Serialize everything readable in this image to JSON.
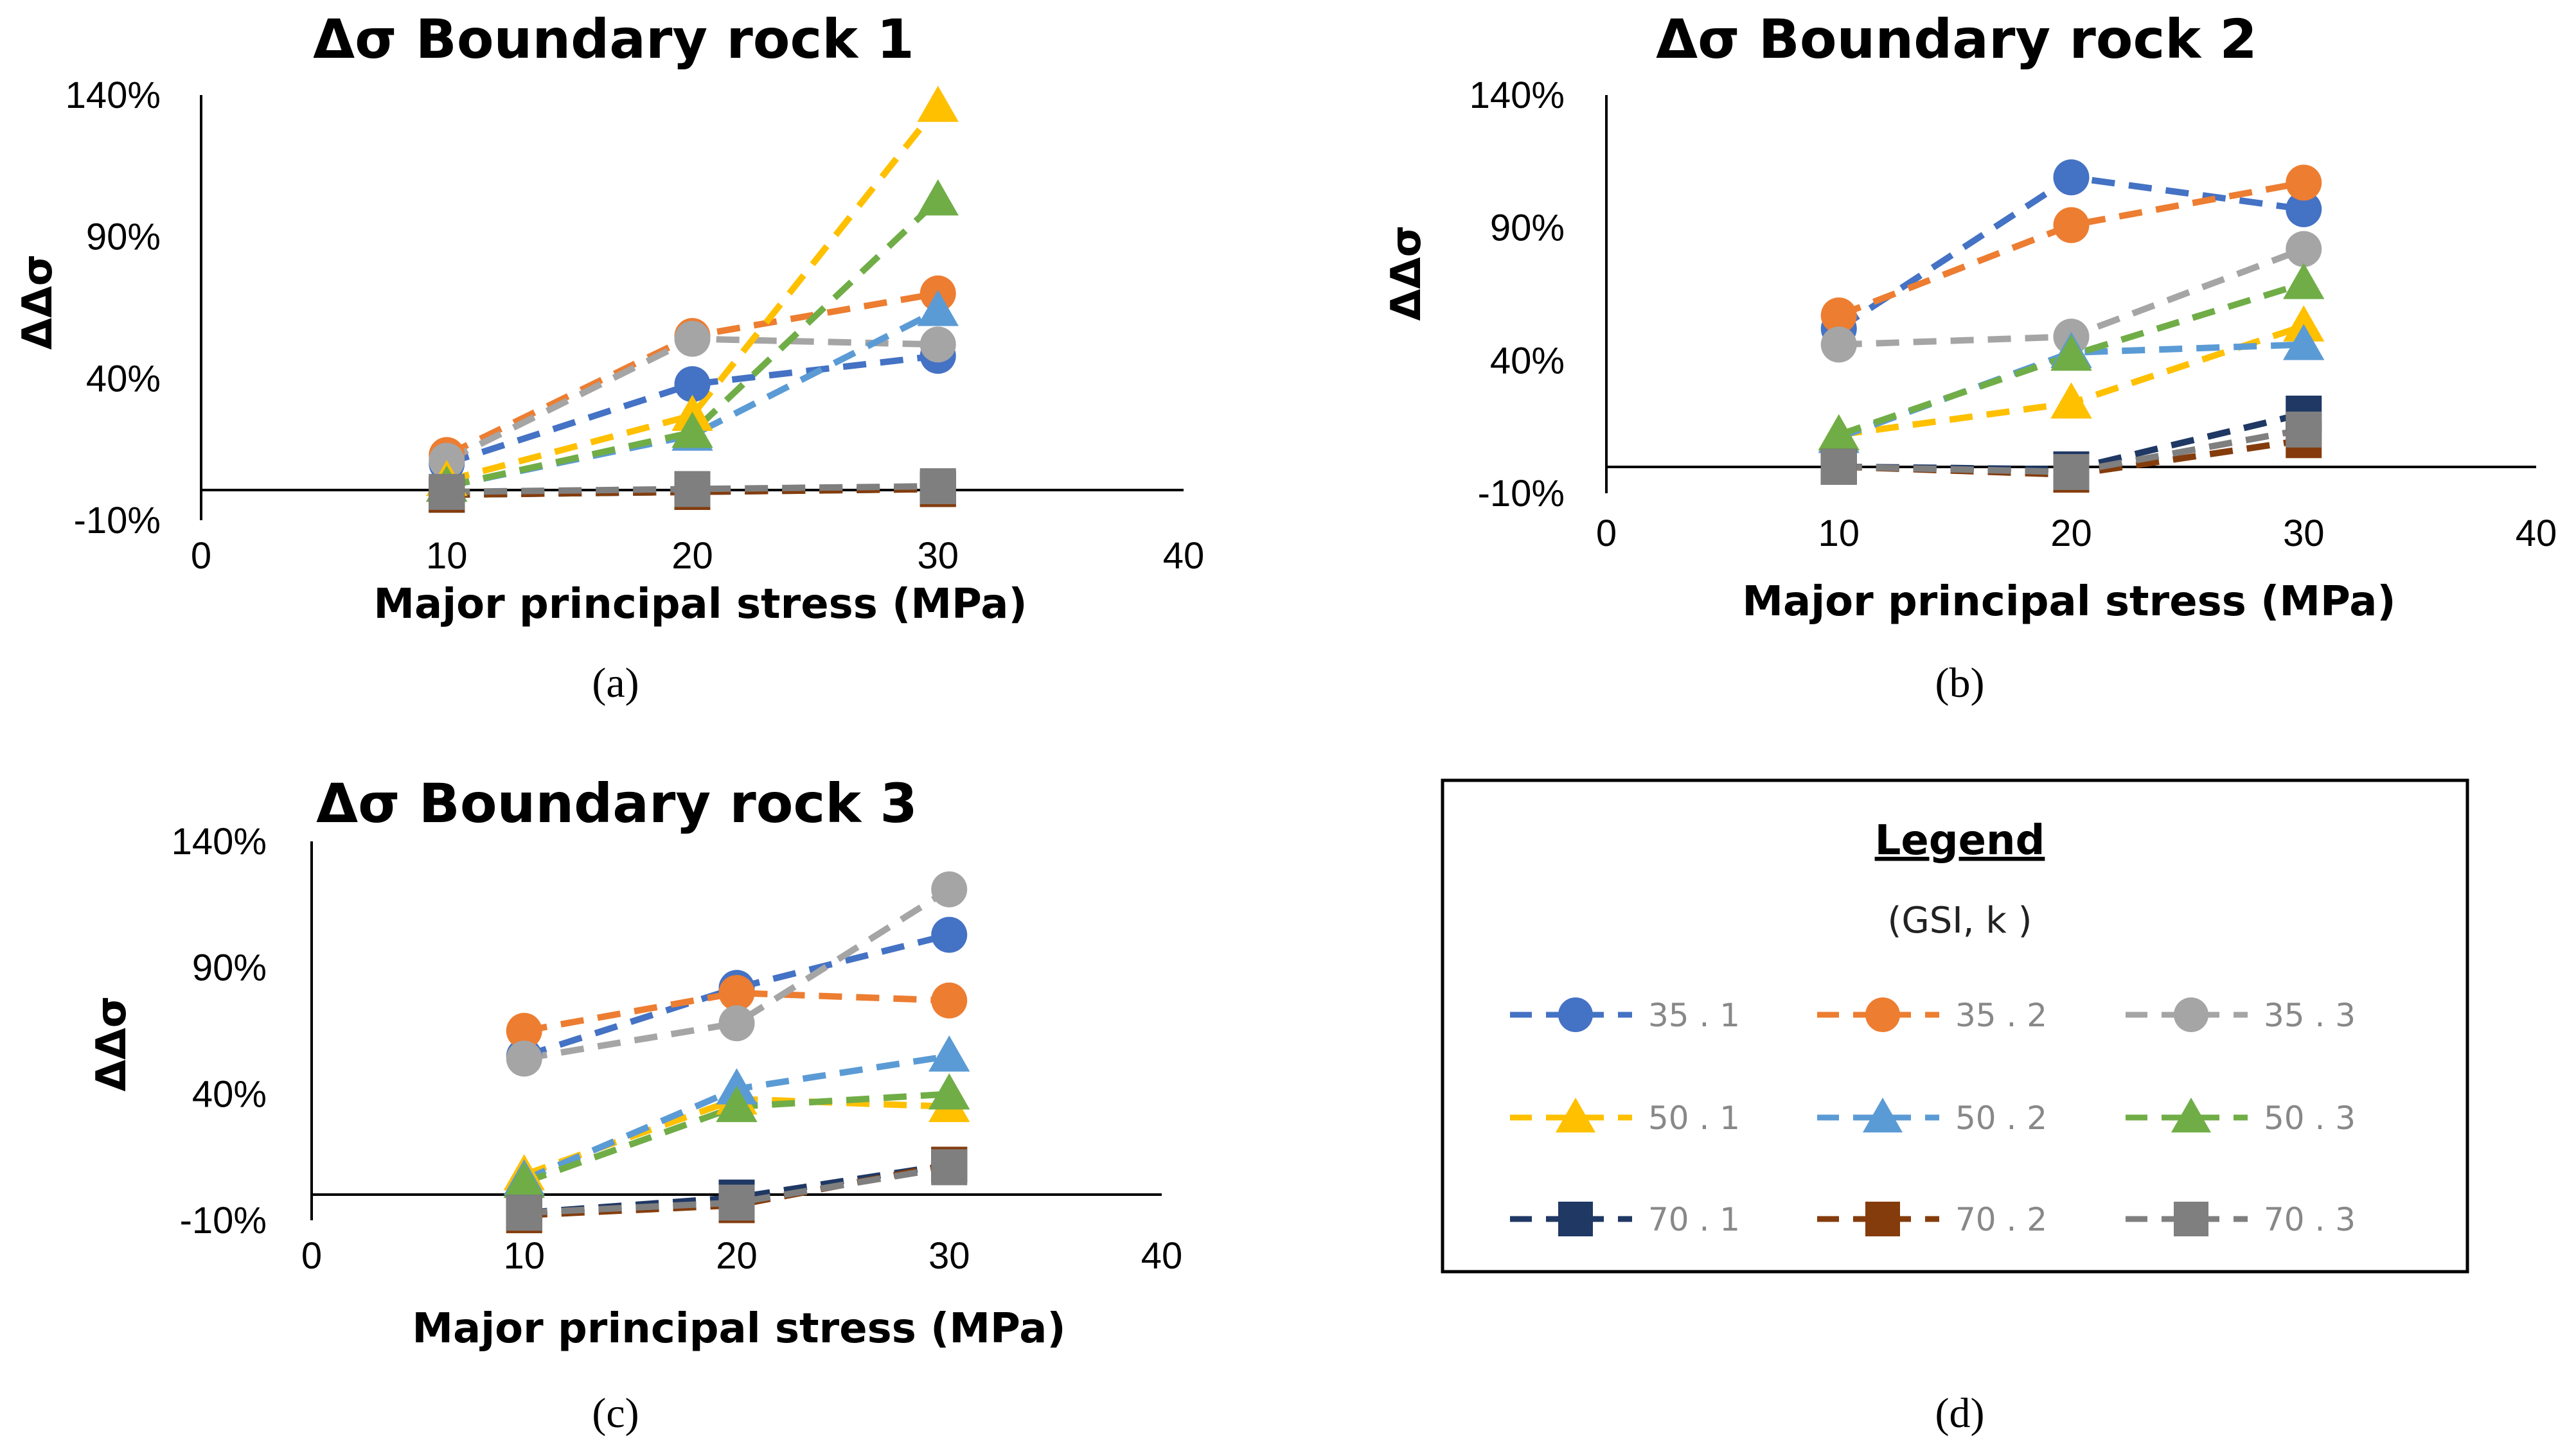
{
  "colors": {
    "35.1": "#4472C4",
    "35.2": "#ED7D31",
    "35.3": "#A5A5A5",
    "50.1": "#FFC000",
    "50.2": "#5B9BD5",
    "50.3": "#70AD47",
    "70.1": "#1F3864",
    "70.2": "#843C0C",
    "70.3": "#7F7F7F"
  },
  "markers": {
    "35.1": "circle",
    "35.2": "circle",
    "35.3": "circle",
    "50.1": "triangle",
    "50.2": "triangle",
    "50.3": "triangle",
    "70.1": "square",
    "70.2": "square",
    "70.3": "square"
  },
  "chart_data": [
    {
      "type": "line",
      "panel_label": "(a)",
      "title": "Δσ Boundary rock 1",
      "xlabel": "Major principal stress (MPa)",
      "ylabel": "ΔΔσ",
      "xlim": [
        0,
        40
      ],
      "ylim": [
        -10,
        140
      ],
      "xticks": [
        0,
        10,
        20,
        30,
        40
      ],
      "xtick_labels": [
        "0",
        "10",
        "20",
        "30",
        "40"
      ],
      "yticks": [
        -10,
        40,
        90,
        140
      ],
      "ytick_labels": [
        "-10%",
        "40%",
        "90%",
        "140%"
      ],
      "x": [
        10,
        20,
        30
      ],
      "series": [
        {
          "name": "35.1",
          "values": [
            10,
            38,
            48
          ]
        },
        {
          "name": "35.2",
          "values": [
            13,
            55,
            70
          ]
        },
        {
          "name": "35.3",
          "values": [
            11,
            54,
            52
          ]
        },
        {
          "name": "50.1",
          "values": [
            4,
            27,
            136
          ]
        },
        {
          "name": "50.2",
          "values": [
            2,
            20,
            64
          ]
        },
        {
          "name": "50.3",
          "values": [
            2,
            21,
            103
          ]
        },
        {
          "name": "70.1",
          "values": [
            -1,
            0,
            1
          ]
        },
        {
          "name": "70.2",
          "values": [
            -1,
            0,
            1
          ]
        },
        {
          "name": "70.3",
          "values": [
            0,
            1,
            2
          ]
        }
      ]
    },
    {
      "type": "line",
      "panel_label": "(b)",
      "title": "Δσ Boundary rock 2",
      "xlabel": "Major principal stress (MPa)",
      "ylabel": "ΔΔσ",
      "xlim": [
        0,
        40
      ],
      "ylim": [
        -10,
        140
      ],
      "xticks": [
        0,
        10,
        20,
        30,
        40
      ],
      "xtick_labels": [
        "0",
        "10",
        "20",
        "30",
        "40"
      ],
      "yticks": [
        -10,
        40,
        90,
        140
      ],
      "ytick_labels": [
        "-10%",
        "40%",
        "90%",
        "140%"
      ],
      "x": [
        10,
        20,
        30
      ],
      "series": [
        {
          "name": "35.1",
          "values": [
            52,
            109,
            97
          ]
        },
        {
          "name": "35.2",
          "values": [
            57,
            91,
            107
          ]
        },
        {
          "name": "35.3",
          "values": [
            46,
            49,
            82
          ]
        },
        {
          "name": "50.1",
          "values": [
            12,
            24,
            53
          ]
        },
        {
          "name": "50.2",
          "values": [
            11,
            43,
            46
          ]
        },
        {
          "name": "50.3",
          "values": [
            12,
            42,
            69
          ]
        },
        {
          "name": "70.1",
          "values": [
            0,
            -1,
            20
          ]
        },
        {
          "name": "70.2",
          "values": [
            0,
            -3,
            10
          ]
        },
        {
          "name": "70.3",
          "values": [
            0,
            -2,
            14
          ]
        }
      ]
    },
    {
      "type": "line",
      "panel_label": "(c)",
      "title": "Δσ Boundary rock 3",
      "xlabel": "Major principal stress (MPa)",
      "ylabel": "ΔΔσ",
      "xlim": [
        0,
        40
      ],
      "ylim": [
        -10,
        140
      ],
      "xticks": [
        0,
        10,
        20,
        30,
        40
      ],
      "xtick_labels": [
        "0",
        "10",
        "20",
        "30",
        "40"
      ],
      "yticks": [
        -10,
        40,
        90,
        140
      ],
      "ytick_labels": [
        "-10%",
        "40%",
        "90%",
        "140%"
      ],
      "x": [
        10,
        20,
        30
      ],
      "series": [
        {
          "name": "35.1",
          "values": [
            55,
            82,
            103
          ]
        },
        {
          "name": "35.2",
          "values": [
            65,
            80,
            77
          ]
        },
        {
          "name": "35.3",
          "values": [
            54,
            68,
            121
          ]
        },
        {
          "name": "50.1",
          "values": [
            8,
            38,
            35
          ]
        },
        {
          "name": "50.2",
          "values": [
            6,
            42,
            55
          ]
        },
        {
          "name": "50.3",
          "values": [
            5,
            35,
            40
          ]
        },
        {
          "name": "70.1",
          "values": [
            -7,
            -1,
            12
          ]
        },
        {
          "name": "70.2",
          "values": [
            -8,
            -4,
            12
          ]
        },
        {
          "name": "70.3",
          "values": [
            -7,
            -3,
            11
          ]
        }
      ]
    }
  ],
  "legend": {
    "panel_label": "(d)",
    "title": "Legend",
    "subtitle": "(GSI, k )",
    "entries": [
      {
        "key": "35.1",
        "label": "35 . 1"
      },
      {
        "key": "35.2",
        "label": "35 . 2"
      },
      {
        "key": "35.3",
        "label": "35 . 3"
      },
      {
        "key": "50.1",
        "label": "50 . 1"
      },
      {
        "key": "50.2",
        "label": "50 . 2"
      },
      {
        "key": "50.3",
        "label": "50 . 3"
      },
      {
        "key": "70.1",
        "label": "70 . 1"
      },
      {
        "key": "70.2",
        "label": "70 . 2"
      },
      {
        "key": "70.3",
        "label": "70 . 3"
      }
    ]
  }
}
